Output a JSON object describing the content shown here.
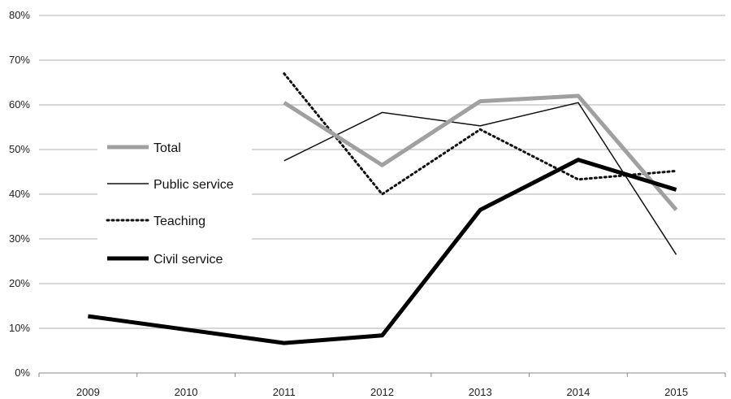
{
  "chart_data": {
    "type": "line",
    "title": "",
    "xlabel": "",
    "ylabel": "",
    "x": [
      "2009",
      "2010",
      "2011",
      "2012",
      "2013",
      "2014",
      "2015"
    ],
    "ylim": [
      0,
      80
    ],
    "yticks": [
      "0%",
      "10%",
      "20%",
      "30%",
      "40%",
      "50%",
      "60%",
      "70%",
      "80%"
    ],
    "grid": "horizontal",
    "legend_position": "left",
    "series": [
      {
        "name": "Total",
        "values": [
          null,
          null,
          60.5,
          46.5,
          60.8,
          62.0,
          36.5
        ],
        "color": "#a0a0a0",
        "style": "thick"
      },
      {
        "name": "Public service",
        "values": [
          null,
          null,
          47.5,
          58.3,
          55.3,
          60.5,
          26.5
        ],
        "color": "#111111",
        "style": "thin"
      },
      {
        "name": "Teaching",
        "values": [
          null,
          null,
          67.0,
          40.0,
          54.5,
          43.3,
          45.2
        ],
        "color": "#111111",
        "style": "dotted"
      },
      {
        "name": "Civil service",
        "values": [
          12.7,
          null,
          6.7,
          8.4,
          36.5,
          47.7,
          41.0
        ],
        "color": "#000000",
        "style": "thick"
      }
    ]
  }
}
